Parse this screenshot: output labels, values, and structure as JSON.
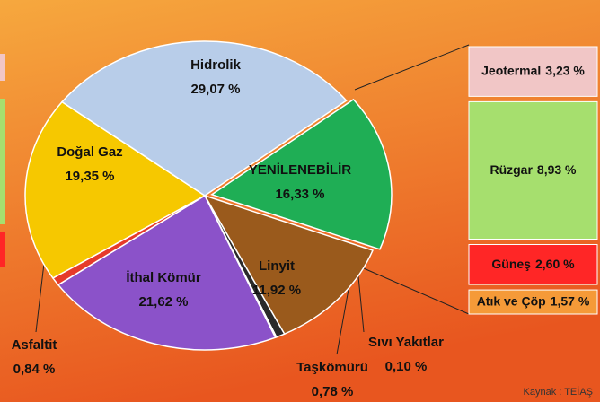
{
  "chart_data": {
    "type": "pie",
    "categories": [
      "YENİLENEBİLİR",
      "Linyit",
      "Taşkömürü",
      "Sıvı Yakıtlar",
      "İthal Kömür",
      "Asfaltit",
      "Doğal Gaz",
      "Hidrolik"
    ],
    "values": [
      16.33,
      11.92,
      0.78,
      0.1,
      21.62,
      0.84,
      19.35,
      29.07
    ],
    "value_labels": [
      "16,33 %",
      "11,92 %",
      "0,78 %",
      "0,10 %",
      "21,62 %",
      "0,84 %",
      "19,35 %",
      "29,07 %"
    ],
    "colors": [
      "#1fae55",
      "#9a5a1c",
      "#2a2a2a",
      "#3c6b2a",
      "#8b52c9",
      "#e63a2a",
      "#f6c800",
      "#b8cde9"
    ],
    "breakdown": {
      "categories": [
        "Jeotermal",
        "Rüzgar",
        "Güneş",
        "Atık ve Çöp"
      ],
      "values": [
        3.23,
        8.93,
        2.6,
        1.57
      ],
      "value_labels": [
        "3,23 %",
        "8,93 %",
        "2,60 %",
        "1,57 %"
      ],
      "colors": [
        "#f1c6c6",
        "#a6df6e",
        "#ff2626",
        "#f59a38"
      ]
    },
    "source": "Kaynak : TEİAŞ"
  }
}
